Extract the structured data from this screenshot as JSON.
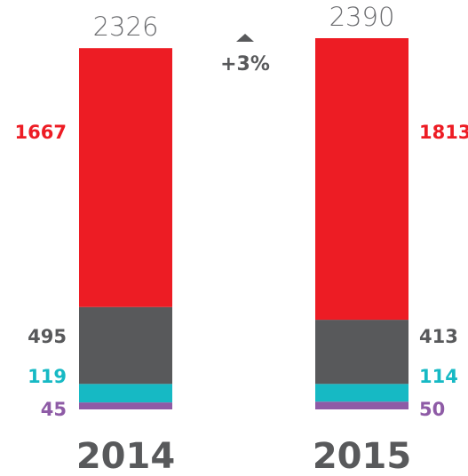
{
  "chart_data": {
    "type": "stacked_bar",
    "categories": [
      "2014",
      "2015"
    ],
    "series": [
      {
        "color": "#8e5ba6",
        "values": [
          45,
          50
        ]
      },
      {
        "color": "#16b9c4",
        "values": [
          119,
          114
        ]
      },
      {
        "color": "#58595b",
        "values": [
          495,
          413
        ]
      },
      {
        "color": "#ed1c24",
        "values": [
          1667,
          1813
        ]
      }
    ],
    "totals": [
      2326,
      2390
    ],
    "annotation": "+3%"
  }
}
